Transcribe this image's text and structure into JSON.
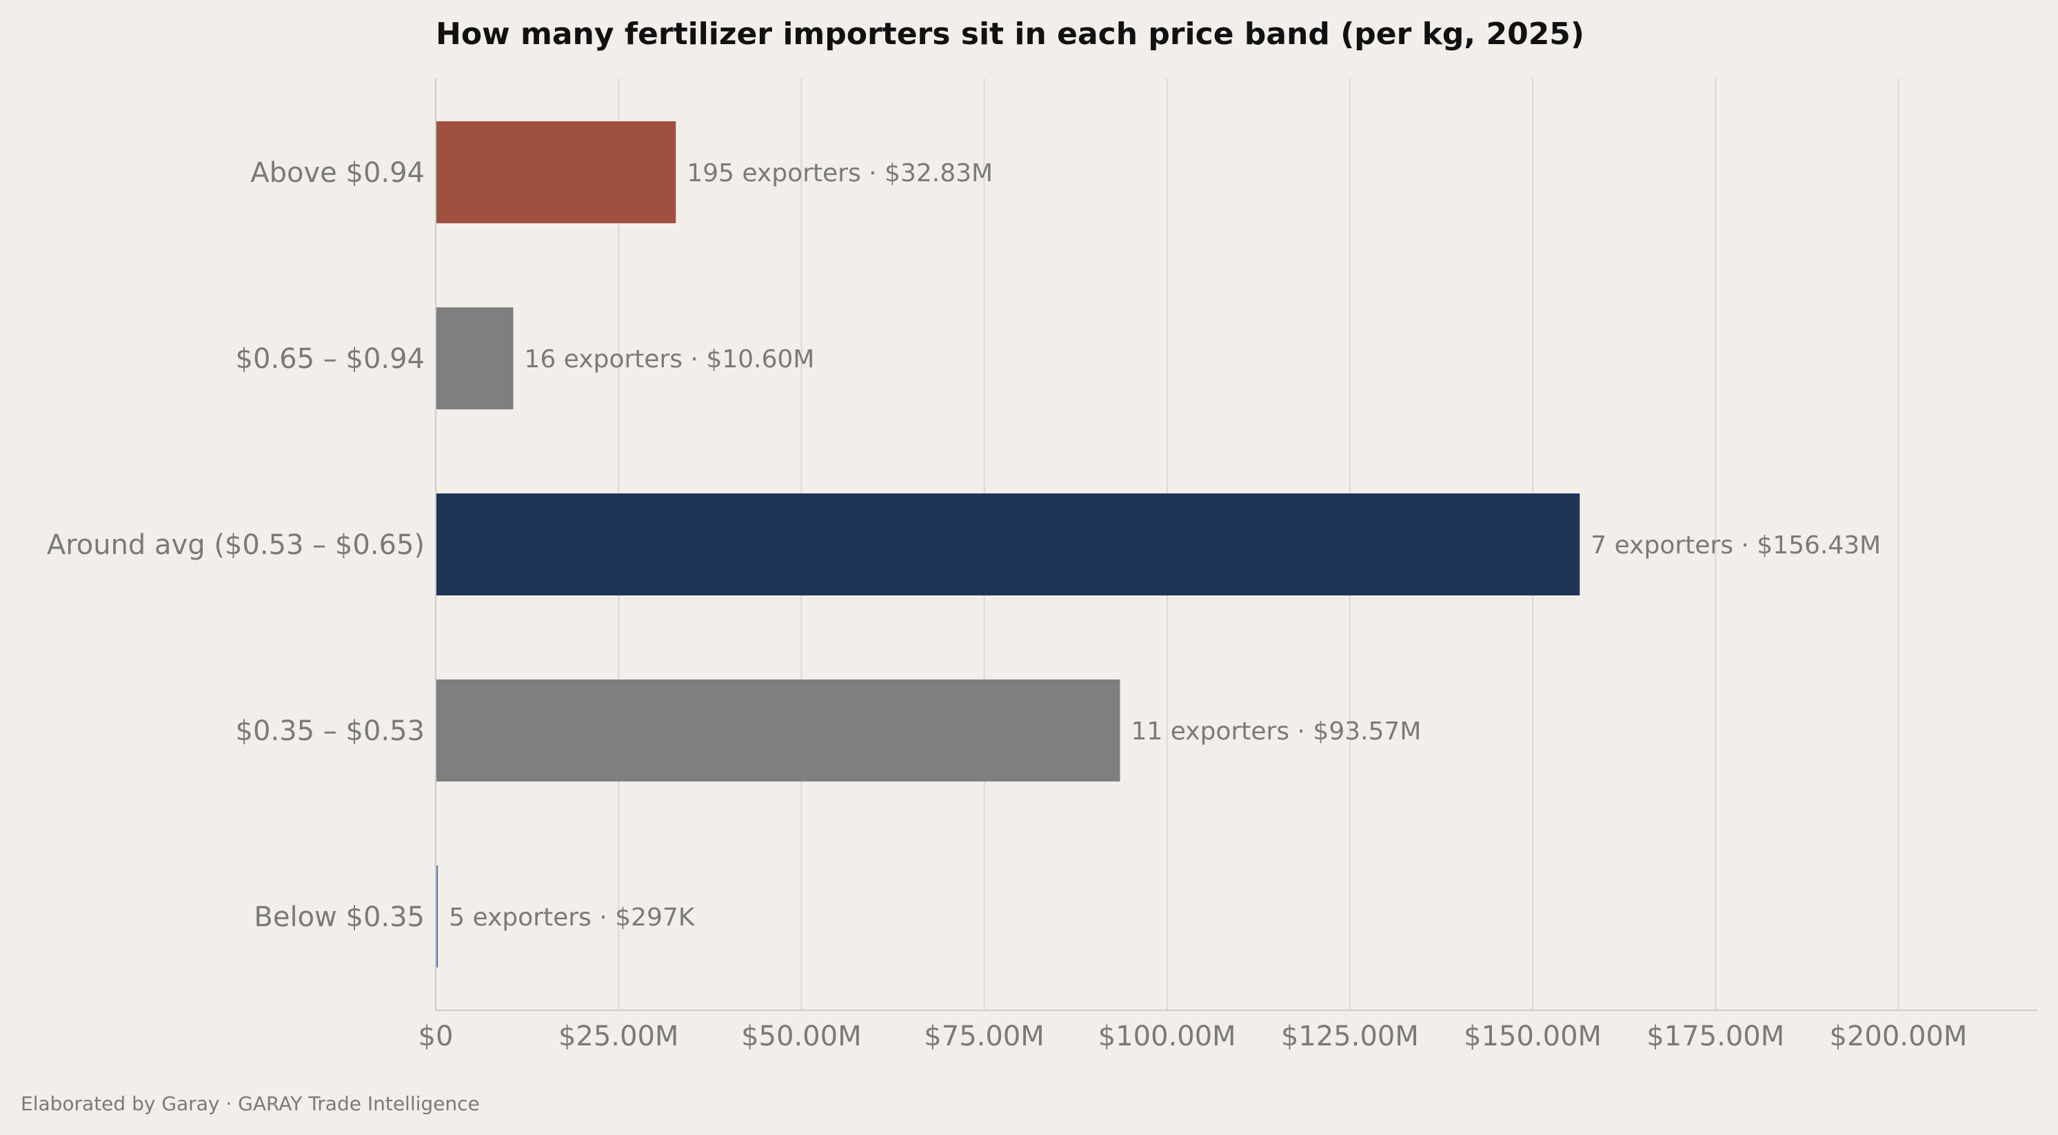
{
  "chart_data": {
    "type": "bar",
    "orientation": "horizontal",
    "title": "How many fertilizer importers sit in each price band (per kg, 2025)",
    "xlabel": "",
    "ylabel": "",
    "categories": [
      "Above $0.94",
      "$0.65 – $0.94",
      "Around avg ($0.53 – $0.65)",
      "$0.35 – $0.53",
      "Below $0.35"
    ],
    "values": [
      32830000,
      10600000,
      156430000,
      93570000,
      297000
    ],
    "bar_labels": [
      "195 exporters  ·  $32.83M",
      "16 exporters  ·  $10.60M",
      "7 exporters  ·  $156.43M",
      "11 exporters  ·  $93.57M",
      "5 exporters  ·  $297K"
    ],
    "colors": [
      "#a05040",
      "#7f7f7f",
      "#1e3456",
      "#7f7f7f",
      "#5b7fad"
    ],
    "xlim": [
      0,
      219000000
    ],
    "x_ticks": [
      0,
      25000000,
      50000000,
      75000000,
      100000000,
      125000000,
      150000000,
      175000000,
      200000000
    ],
    "x_tick_labels": [
      "$0",
      "$25.00M",
      "$50.00M",
      "$75.00M",
      "$100.00M",
      "$125.00M",
      "$150.00M",
      "$175.00M",
      "$200.00M"
    ],
    "grid": "vertical",
    "legend": "none"
  },
  "footer": {
    "text": "Elaborated by Garay  ·  GARAY Trade Intelligence"
  }
}
